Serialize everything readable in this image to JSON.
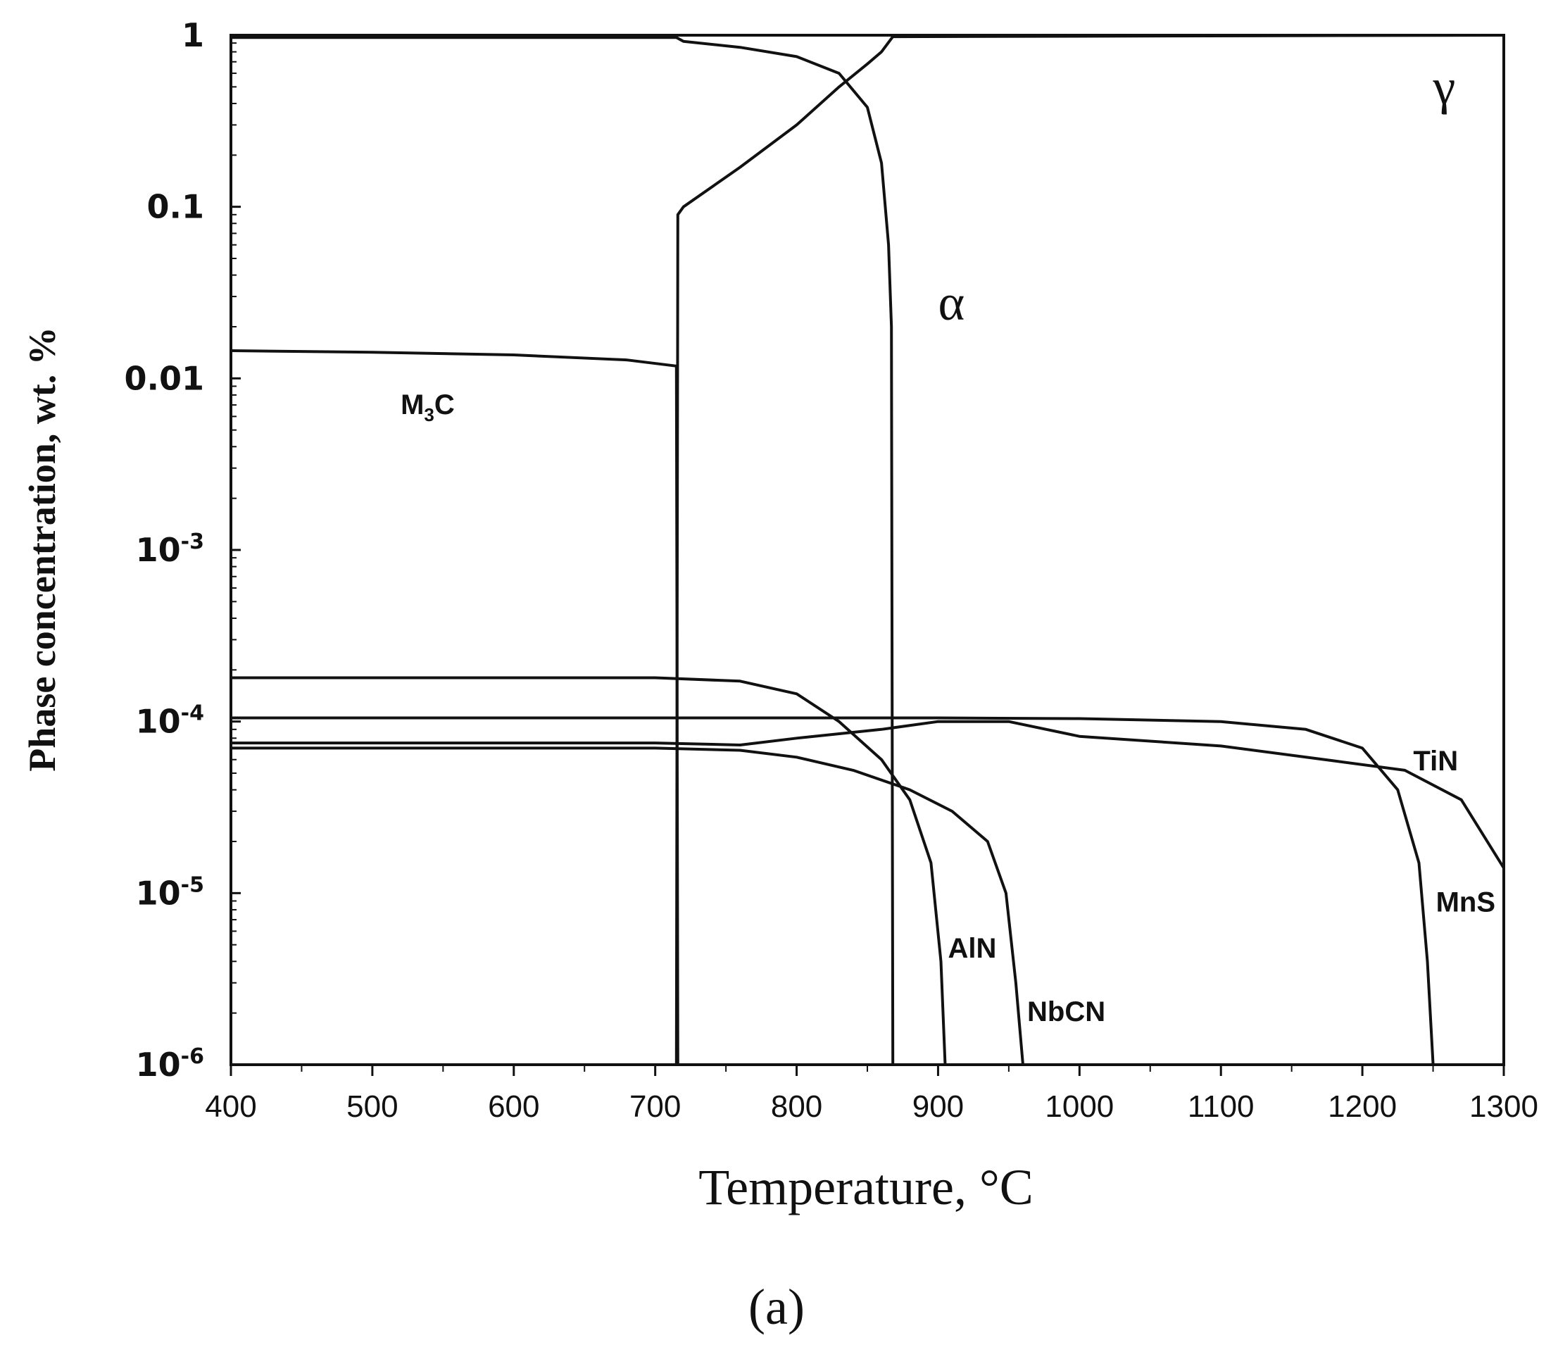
{
  "chart_data": {
    "type": "line",
    "title": "",
    "xlabel": "Temperature, °C",
    "ylabel": "Phase concentration, wt. %",
    "x_scale": "linear",
    "y_scale": "log",
    "xlim": [
      400,
      1300
    ],
    "ylim": [
      1e-06,
      1
    ],
    "x_ticks": [
      "400",
      "500",
      "600",
      "700",
      "800",
      "900",
      "1000",
      "1100",
      "1200",
      "1300"
    ],
    "y_ticks": [
      {
        "value": 1,
        "base": "1",
        "exp": ""
      },
      {
        "value": 0.1,
        "base": "0.1",
        "exp": ""
      },
      {
        "value": 0.01,
        "base": "0.01",
        "exp": ""
      },
      {
        "value": 0.001,
        "base": "10",
        "exp": "-3"
      },
      {
        "value": 0.0001,
        "base": "10",
        "exp": "-4"
      },
      {
        "value": 1e-05,
        "base": "10",
        "exp": "-5"
      },
      {
        "value": 1e-06,
        "base": "10",
        "exp": "-6"
      }
    ],
    "grid": false,
    "legend": "none",
    "panel_label": "(a)",
    "series": [
      {
        "name": "α",
        "x": [
          400,
          715,
          720,
          760,
          800,
          830,
          850,
          860,
          865,
          867,
          868
        ],
        "y": [
          0.97,
          0.97,
          0.92,
          0.85,
          0.75,
          0.6,
          0.38,
          0.18,
          0.06,
          0.02,
          1e-06
        ]
      },
      {
        "name": "γ",
        "x": [
          715,
          716,
          720,
          760,
          800,
          830,
          850,
          860,
          868,
          1300
        ],
        "y": [
          1e-06,
          0.09,
          0.1,
          0.17,
          0.3,
          0.5,
          0.68,
          0.8,
          0.98,
          1.0
        ]
      },
      {
        "name": "M3C",
        "x": [
          400,
          500,
          600,
          680,
          715,
          716
        ],
        "y": [
          0.0145,
          0.0142,
          0.0137,
          0.0128,
          0.0118,
          1e-06
        ]
      },
      {
        "name": "AlN",
        "x": [
          400,
          700,
          760,
          800,
          830,
          860,
          880,
          895,
          902,
          905
        ],
        "y": [
          0.00018,
          0.00018,
          0.000172,
          0.000145,
          0.0001,
          6e-05,
          3.5e-05,
          1.5e-05,
          4e-06,
          1e-06
        ]
      },
      {
        "name": "NbCN",
        "x": [
          400,
          700,
          760,
          800,
          840,
          880,
          910,
          935,
          948,
          955,
          960
        ],
        "y": [
          7e-05,
          7e-05,
          6.8e-05,
          6.2e-05,
          5.2e-05,
          4e-05,
          3e-05,
          2e-05,
          1e-05,
          3e-06,
          1e-06
        ]
      },
      {
        "name": "TiN",
        "x": [
          400,
          700,
          760,
          800,
          860,
          900,
          950,
          1000,
          1100,
          1180,
          1230,
          1270,
          1300
        ],
        "y": [
          7.5e-05,
          7.5e-05,
          7.3e-05,
          8e-05,
          9e-05,
          0.0001,
          0.0001,
          8.2e-05,
          7.2e-05,
          5.9e-05,
          5.2e-05,
          3.5e-05,
          1.4e-05
        ]
      },
      {
        "name": "MnS",
        "x": [
          400,
          700,
          900,
          1000,
          1100,
          1160,
          1200,
          1225,
          1240,
          1246,
          1250
        ],
        "y": [
          0.000105,
          0.000105,
          0.000105,
          0.000104,
          0.0001,
          9e-05,
          7e-05,
          4e-05,
          1.5e-05,
          4e-06,
          1e-06
        ]
      }
    ],
    "annotations": [
      {
        "text": "γ",
        "x": 1250,
        "y": 0.4
      },
      {
        "text": "α",
        "x": 900,
        "y": 0.022
      },
      {
        "text": "M",
        "sub": "3",
        "after": "C",
        "x": 520,
        "y": 0.0062
      },
      {
        "text": "AlN",
        "x": 907,
        "y": 4.2e-06
      },
      {
        "text": "NbCN",
        "x": 963,
        "y": 1.8e-06
      },
      {
        "text": "TiN",
        "x": 1236,
        "y": 5.2e-05
      },
      {
        "text": "MnS",
        "x": 1252,
        "y": 7.8e-06
      }
    ]
  }
}
